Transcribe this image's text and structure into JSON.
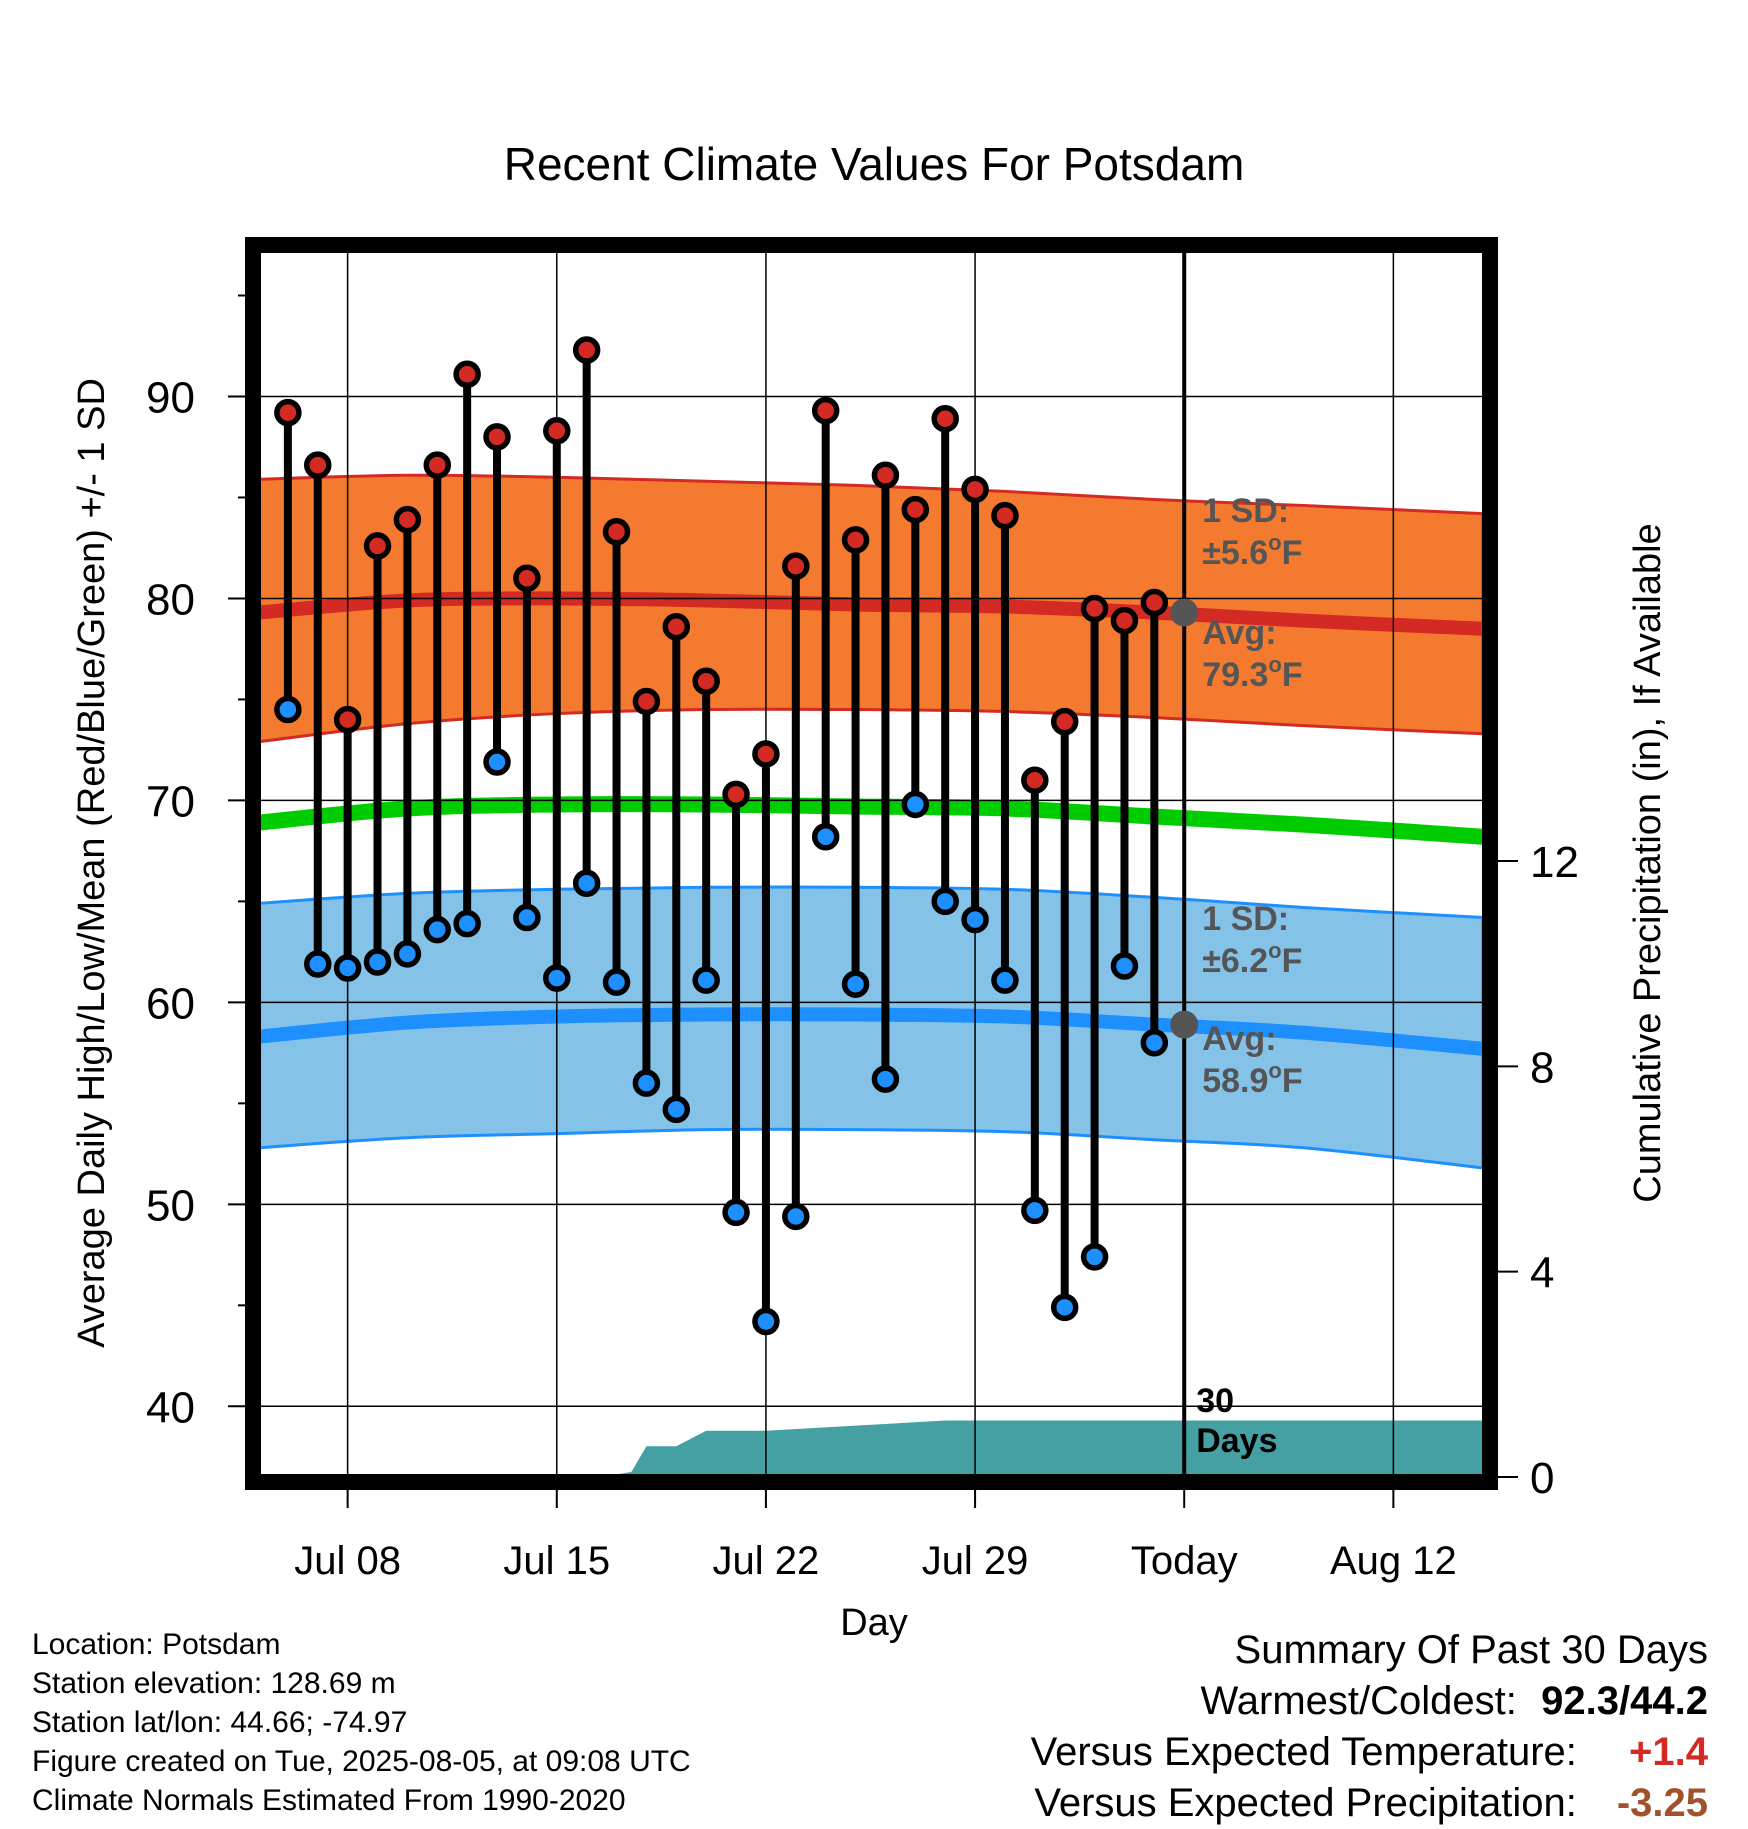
{
  "chart_data": {
    "type": "line",
    "title": "Recent Climate Values For Potsdam",
    "xlabel": "Day",
    "ylabel": "Average Daily High/Low/Mean (Red/Blue/Green) +/- 1 SD",
    "y2label": "Cumulative Precipitation (in), If Available",
    "ylim": [
      36.5,
      97.5
    ],
    "y2lim": [
      0,
      24
    ],
    "y_ticks": [
      "40",
      "50",
      "60",
      "70",
      "80",
      "90"
    ],
    "y2_ticks": [
      "0",
      "4",
      "8",
      "12"
    ],
    "x_tick_labels": [
      "Jul 08",
      "Jul 15",
      "Jul 22",
      "Jul 29",
      "Today",
      "Aug 12"
    ],
    "x_tick_days": [
      8,
      15,
      22,
      29,
      36,
      43
    ],
    "grid": true,
    "today_day": 36,
    "today_label_line1": "30",
    "today_label_line2": "Days",
    "observed_days": [
      6,
      7,
      8,
      9,
      10,
      11,
      12,
      13,
      14,
      15,
      16,
      17,
      18,
      19,
      20,
      21,
      22,
      23,
      24,
      25,
      26,
      27,
      28,
      29,
      30,
      31,
      32,
      33,
      34,
      35
    ],
    "highs": [
      89.2,
      86.6,
      74.0,
      82.6,
      83.9,
      86.6,
      91.1,
      88.0,
      81.0,
      88.3,
      92.3,
      83.3,
      74.9,
      78.6,
      75.9,
      70.3,
      72.3,
      81.6,
      89.3,
      82.9,
      86.1,
      84.4,
      88.9,
      85.4,
      84.1,
      71.0,
      73.9,
      79.5,
      78.9,
      79.8
    ],
    "lows": [
      74.5,
      61.9,
      61.7,
      62.0,
      62.4,
      63.6,
      63.9,
      71.9,
      64.2,
      61.2,
      65.9,
      61.0,
      56.0,
      54.7,
      61.1,
      49.6,
      44.2,
      49.4,
      68.2,
      60.9,
      56.2,
      69.8,
      65.0,
      64.1,
      61.1,
      49.7,
      44.9,
      47.4,
      61.8,
      58.0
    ],
    "normal_days": [
      5,
      10,
      15,
      20,
      25,
      30,
      35,
      40,
      46
    ],
    "normal_high": [
      79.3,
      79.9,
      80.0,
      79.9,
      79.7,
      79.6,
      79.3,
      78.9,
      78.5
    ],
    "normal_high_upper": [
      85.9,
      86.1,
      86.0,
      85.8,
      85.6,
      85.3,
      84.9,
      84.6,
      84.2
    ],
    "normal_high_lower": [
      72.9,
      73.8,
      74.3,
      74.5,
      74.5,
      74.4,
      74.1,
      73.7,
      73.3
    ],
    "normal_mean": [
      68.9,
      69.6,
      69.8,
      69.8,
      69.7,
      69.6,
      69.2,
      68.8,
      68.2
    ],
    "normal_low": [
      58.3,
      59.0,
      59.3,
      59.4,
      59.4,
      59.3,
      58.9,
      58.5,
      57.7
    ],
    "normal_low_upper": [
      64.9,
      65.4,
      65.6,
      65.7,
      65.7,
      65.6,
      65.2,
      64.7,
      64.2
    ],
    "normal_low_lower": [
      52.8,
      53.3,
      53.5,
      53.7,
      53.7,
      53.6,
      53.2,
      52.8,
      51.8
    ],
    "precip_days": [
      5,
      16.5,
      17.5,
      18,
      19,
      20,
      21,
      22,
      25,
      28,
      46
    ],
    "precip_values": [
      0,
      0,
      0.1,
      0.6,
      0.6,
      0.9,
      0.9,
      0.9,
      1.0,
      1.1,
      1.1
    ],
    "annotations": {
      "high_sd_line1": "1 SD:",
      "high_sd_line2": "±5.6",
      "high_avg_line1": "Avg:",
      "high_avg_line2": "79.3",
      "low_sd_line1": "1 SD:",
      "low_sd_line2": "±6.2",
      "low_avg_line1": "Avg:",
      "low_avg_line2": "58.9",
      "degree_mark": "o",
      "unit_letter": "F"
    },
    "colors": {
      "high_band": "#f47a30",
      "high_line": "#d42a24",
      "low_band": "#84c2e8",
      "low_line": "#1e8fff",
      "mean_line": "#00cc00",
      "precip": "#45a0a4",
      "high_dot": "#d42a24",
      "low_dot": "#1e8fff",
      "annotation": "#555555"
    }
  },
  "location": {
    "line1": "Location: Potsdam",
    "line2": "Station elevation: 128.69 m",
    "line3": "Station lat/lon: 44.66; -74.97",
    "line4": "Figure created on Tue, 2025-08-05, at 09:08 UTC",
    "line5": "Climate Normals Estimated From 1990-2020"
  },
  "summary": {
    "heading": "Summary Of Past 30 Days",
    "warm_cold_label": "Warmest/Coldest:",
    "warm_cold_value": "92.3/44.2",
    "temp_label": "Versus Expected Temperature:",
    "temp_value": "+1.4",
    "temp_color": "#d42a24",
    "precip_label": "Versus Expected Precipitation:",
    "precip_value": "-3.25",
    "precip_color": "#a0522d"
  }
}
